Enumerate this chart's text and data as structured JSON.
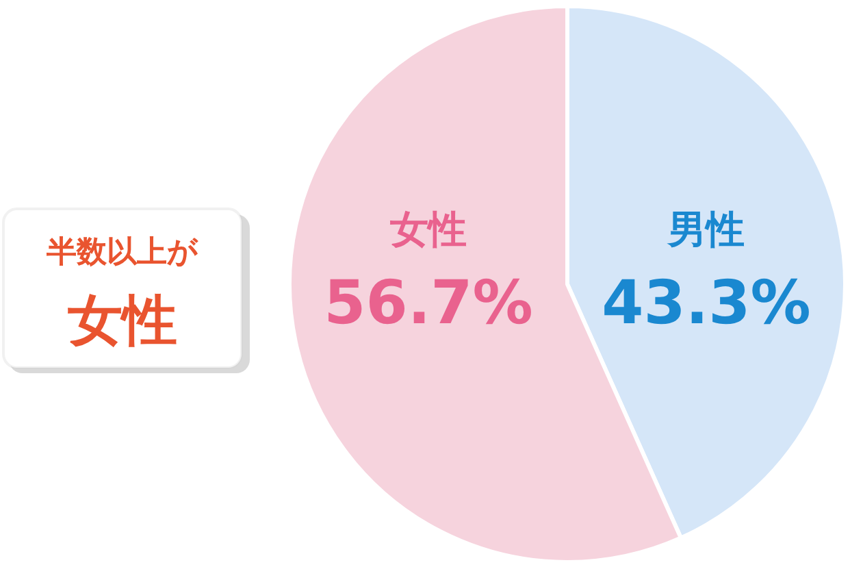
{
  "chart_data": {
    "type": "pie",
    "categories": [
      "男性",
      "女性"
    ],
    "values": [
      43.3,
      56.7
    ],
    "colors": [
      "#d5e6f8",
      "#f6d3dd"
    ],
    "value_labels": [
      "43.3%",
      "56.7%"
    ],
    "annotations": [
      "半数以上が",
      "女性"
    ]
  }
}
